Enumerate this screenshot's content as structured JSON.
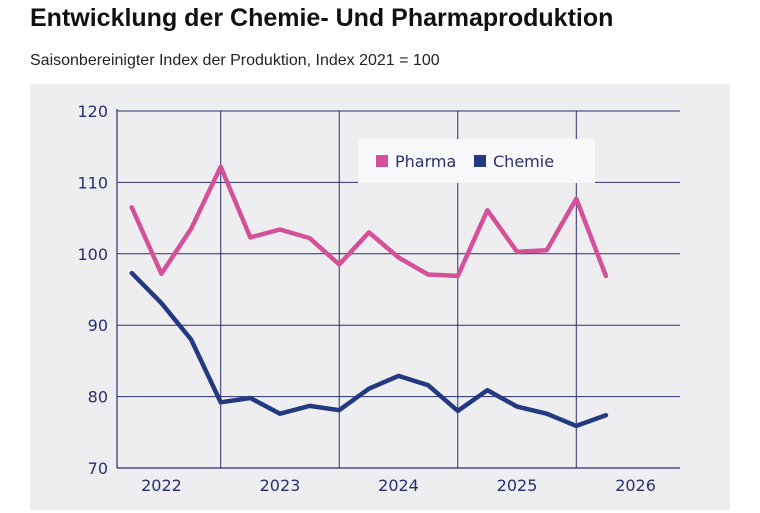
{
  "title": "Entwicklung der Chemie- Und Pharmaproduktion",
  "subtitle": "Saisonbereinigter Index der Produktion, Index 2021 = 100",
  "chart_data": {
    "type": "line",
    "title": "Entwicklung der Chemie- Und Pharmaproduktion",
    "subtitle": "Saisonbereinigter Index der Produktion, Index 2021 = 100",
    "xlabel": "",
    "ylabel": "",
    "xlim": [
      2021.625,
      2026.375
    ],
    "ylim": [
      70,
      120
    ],
    "yticks": [
      70,
      80,
      90,
      100,
      110,
      120
    ],
    "xticks": [
      2022,
      2023,
      2024,
      2025,
      2026
    ],
    "grid": true,
    "legend": "top-center",
    "x": [
      2021.75,
      2022.0,
      2022.25,
      2022.5,
      2022.75,
      2023.0,
      2023.25,
      2023.5,
      2023.75,
      2024.0,
      2024.25,
      2024.5,
      2024.75,
      2025.0,
      2025.25,
      2025.5,
      2025.75
    ],
    "series": [
      {
        "name": "Pharma",
        "color": "#d4519a",
        "values": [
          106.5,
          97.2,
          103.5,
          112.2,
          102.3,
          103.4,
          102.2,
          98.5,
          103.0,
          99.5,
          97.1,
          96.9,
          106.1,
          100.3,
          100.5,
          107.7,
          96.9
        ]
      },
      {
        "name": "Chemie",
        "color": "#243a80",
        "values": [
          97.3,
          93.1,
          88.0,
          79.2,
          79.8,
          77.6,
          78.7,
          78.1,
          81.1,
          82.9,
          81.6,
          78.0,
          80.9,
          78.6,
          77.6,
          75.9,
          77.4
        ]
      }
    ]
  }
}
